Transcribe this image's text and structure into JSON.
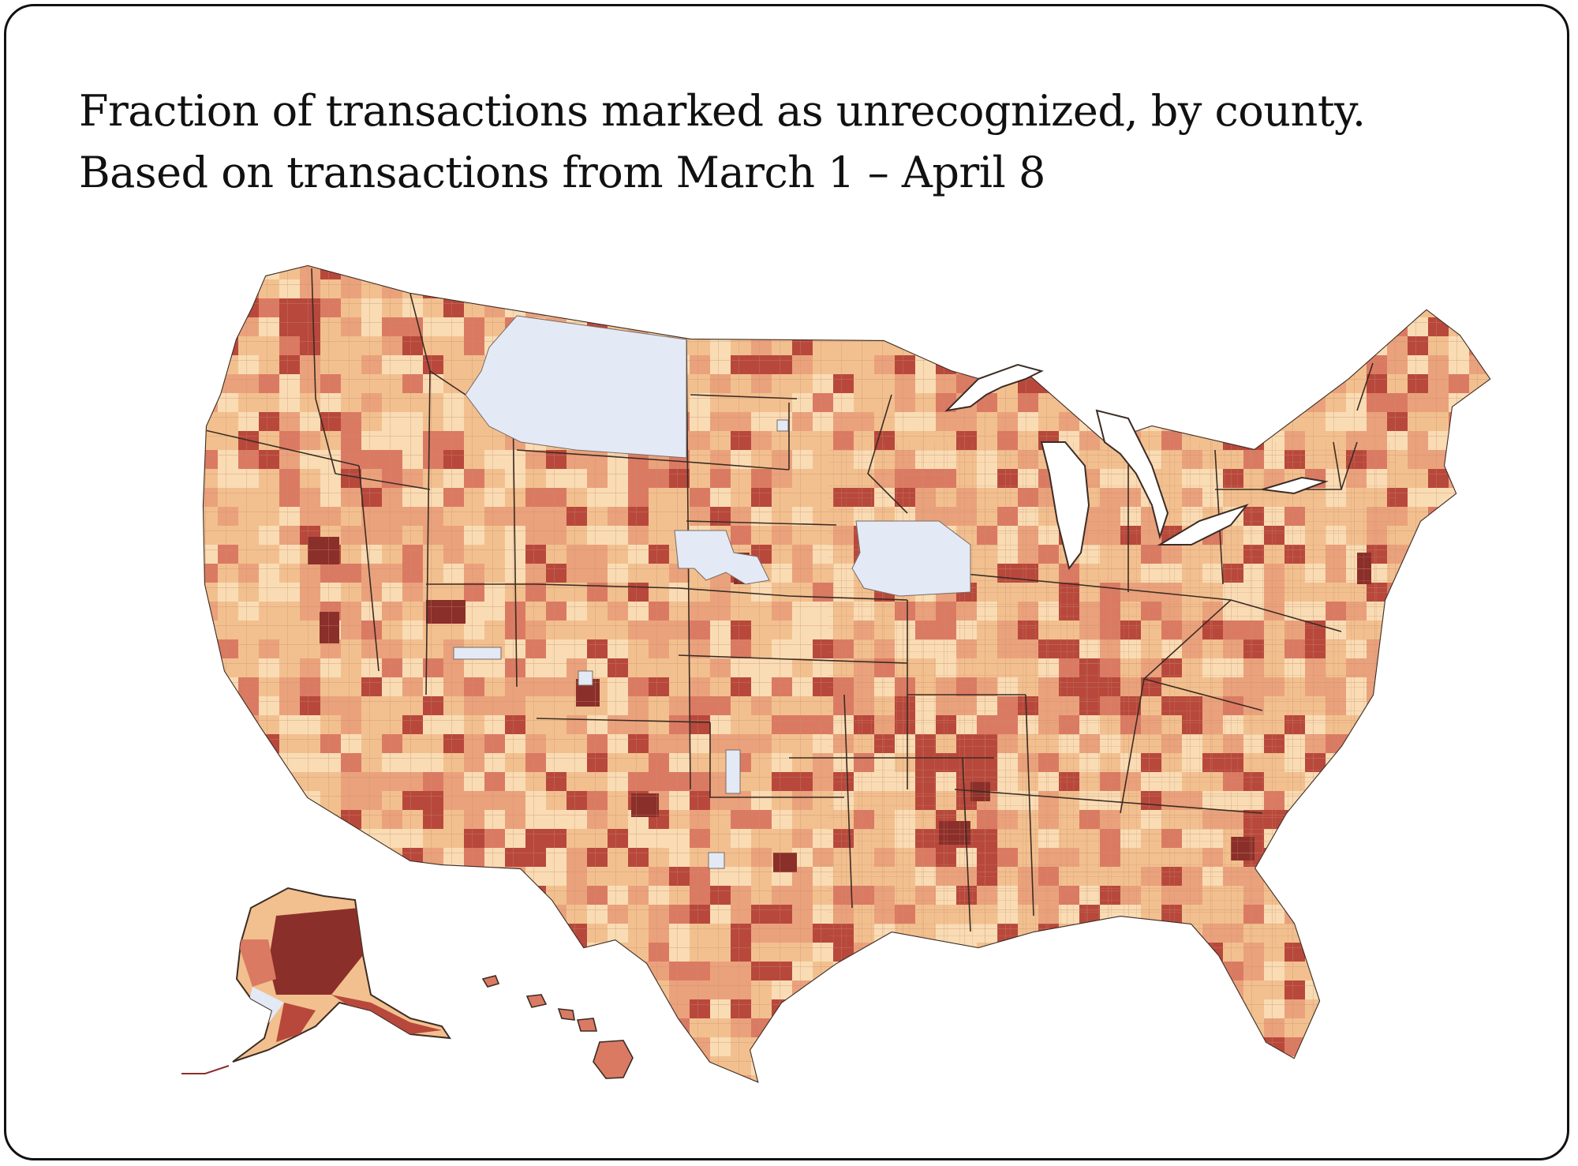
{
  "title": {
    "line1": "Fraction of transactions marked as unrecognized, by county.",
    "line2": "Based on transactions from March 1 – April 8"
  },
  "map": {
    "subject": "United States counties including Alaska and Hawaii",
    "colors": {
      "lightest": "#f9dcb4",
      "light": "#f2c08f",
      "medium": "#eaa27c",
      "strong": "#db7a63",
      "dark": "#b8483c",
      "darkest": "#8b2f2a",
      "no_data": "#e3e9f5",
      "border": "#4a3a32",
      "water": "#ffffff"
    }
  }
}
